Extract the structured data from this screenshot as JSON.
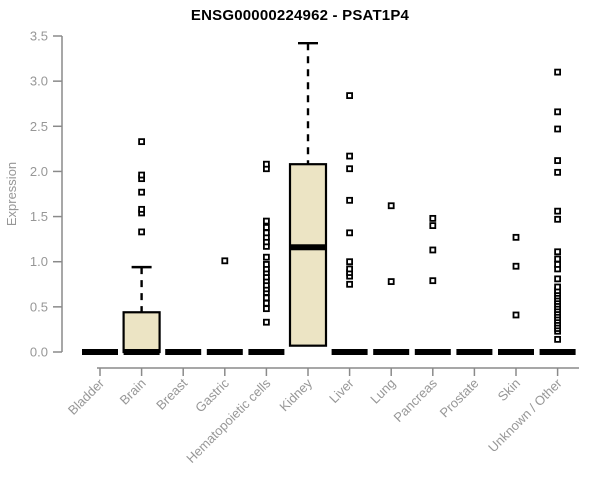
{
  "chart_data": {
    "type": "boxplot",
    "title": "ENSG00000224962 - PSAT1P4",
    "xlabel": "",
    "ylabel": "Expression",
    "ylim": [
      0,
      3.5
    ],
    "yticks": [
      0.0,
      0.5,
      1.0,
      1.5,
      2.0,
      2.5,
      3.0,
      3.5
    ],
    "grid": "off",
    "legend": "none",
    "marker": "open-square",
    "categories": [
      "Bladder",
      "Brain",
      "Breast",
      "Gastric",
      "Hematopoietic cells",
      "Kidney",
      "Liver",
      "Lung",
      "Pancreas",
      "Prostate",
      "Skin",
      "Unknown / Other"
    ],
    "boxes": [
      {
        "label": "Bladder",
        "q1": 0,
        "median": 0,
        "q3": 0,
        "whisker_low": 0,
        "whisker_high": 0,
        "outliers": []
      },
      {
        "label": "Brain",
        "q1": 0,
        "median": 0,
        "q3": 0.44,
        "whisker_low": 0,
        "whisker_high": 0.94,
        "outliers": [
          1.33,
          1.54,
          1.58,
          1.77,
          1.92,
          1.96,
          2.33
        ]
      },
      {
        "label": "Breast",
        "q1": 0,
        "median": 0,
        "q3": 0,
        "whisker_low": 0,
        "whisker_high": 0,
        "outliers": []
      },
      {
        "label": "Gastric",
        "q1": 0,
        "median": 0,
        "q3": 0,
        "whisker_low": 0,
        "whisker_high": 0,
        "outliers": [
          1.01
        ]
      },
      {
        "label": "Hematopoietic cells",
        "q1": 0,
        "median": 0,
        "q3": 0,
        "whisker_low": 0,
        "whisker_high": 0,
        "outliers": [
          0.33,
          0.48,
          0.54,
          0.6,
          0.66,
          0.7,
          0.74,
          0.79,
          0.83,
          0.88,
          0.92,
          0.97,
          1.05,
          1.17,
          1.22,
          1.27,
          1.32,
          1.38,
          1.45,
          2.03,
          2.08
        ]
      },
      {
        "label": "Kidney",
        "q1": 0.07,
        "median": 1.16,
        "q3": 2.08,
        "whisker_low": 0.07,
        "whisker_high": 3.42,
        "outliers": []
      },
      {
        "label": "Liver",
        "q1": 0,
        "median": 0,
        "q3": 0,
        "whisker_low": 0,
        "whisker_high": 0,
        "outliers": [
          0.75,
          0.84,
          0.88,
          0.92,
          1.0,
          1.32,
          1.68,
          2.03,
          2.17,
          2.84
        ]
      },
      {
        "label": "Lung",
        "q1": 0,
        "median": 0,
        "q3": 0,
        "whisker_low": 0,
        "whisker_high": 0,
        "outliers": [
          0.78,
          1.62
        ]
      },
      {
        "label": "Pancreas",
        "q1": 0,
        "median": 0,
        "q3": 0,
        "whisker_low": 0,
        "whisker_high": 0,
        "outliers": [
          0.79,
          1.13,
          1.4,
          1.48
        ]
      },
      {
        "label": "Prostate",
        "q1": 0,
        "median": 0,
        "q3": 0,
        "whisker_low": 0,
        "whisker_high": 0,
        "outliers": []
      },
      {
        "label": "Skin",
        "q1": 0,
        "median": 0,
        "q3": 0,
        "whisker_low": 0,
        "whisker_high": 0,
        "outliers": [
          0.41,
          0.95,
          1.27
        ]
      },
      {
        "label": "Unknown / Other",
        "q1": 0,
        "median": 0,
        "q3": 0,
        "whisker_low": 0,
        "whisker_high": 0,
        "outliers": [
          0.14,
          0.23,
          0.26,
          0.29,
          0.32,
          0.35,
          0.38,
          0.41,
          0.44,
          0.47,
          0.5,
          0.53,
          0.56,
          0.59,
          0.62,
          0.65,
          0.68,
          0.72,
          0.81,
          0.92,
          0.97,
          1.03,
          1.11,
          1.47,
          1.56,
          1.99,
          2.12,
          2.47,
          2.66,
          3.1
        ]
      }
    ],
    "colors": {
      "box_fill": "#ECE4C4",
      "box_border": "#000000",
      "median": "#000000",
      "whisker": "#000000",
      "outlier": "#000000",
      "axis": "#8A8A8A",
      "tick_label": "#979797",
      "title": "#000000"
    }
  }
}
